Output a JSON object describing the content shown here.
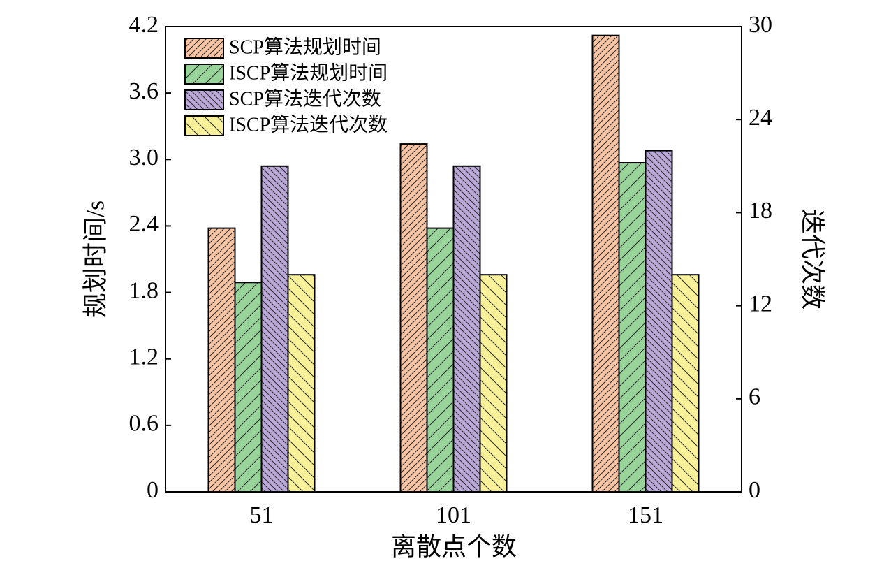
{
  "chart_data": {
    "type": "bar",
    "x_label": "离散点个数",
    "y_label": "规划时间/s",
    "y2_label": "迭代次数",
    "categories": [
      "51",
      "101",
      "151"
    ],
    "series": [
      {
        "name": "SCP算法规划时间",
        "color": "#f9c4a4",
        "values": [
          2.38,
          3.14,
          4.12
        ]
      },
      {
        "name": "ISCP算法规划时间",
        "color": "#98d49a",
        "values": [
          1.89,
          2.38,
          2.97
        ]
      },
      {
        "name": "SCP算法迭代次数",
        "color": "#b9a8d8",
        "values": [
          21,
          21,
          22
        ],
        "axis": "y2"
      },
      {
        "name": "ISCP算法迭代次数",
        "color": "#f9f19a",
        "values": [
          14,
          14,
          14
        ],
        "axis": "y2"
      }
    ],
    "ylim": [
      0,
      4.2
    ],
    "yticks": [
      0,
      0.6,
      1.2,
      1.8,
      2.4,
      {
        "value": 3,
        "label": "3.0"
      },
      3.6,
      4.2
    ],
    "y2lim": [
      0,
      30
    ],
    "y2ticks": [
      0,
      6,
      12,
      18,
      24,
      30
    ],
    "legend": "upper left"
  }
}
